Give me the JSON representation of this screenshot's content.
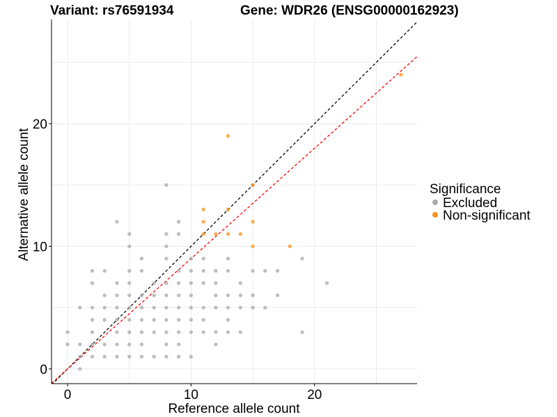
{
  "title_left": "Variant: rs76591934",
  "title_right": "Gene: WDR26 (ENSG00000162923)",
  "colors": {
    "excluded": "#aaaaaa",
    "non_significant": "#f7941d",
    "identity_line": "#000000",
    "fit_line": "#ff0000",
    "grid": "#ebebeb"
  },
  "chart_data": {
    "type": "scatter",
    "xlabel": "Reference allele count",
    "ylabel": "Alternative allele count",
    "xlim": [
      -1.3,
      28.3
    ],
    "ylim": [
      -1.2,
      28.5
    ],
    "x_ticks": [
      0,
      10,
      20
    ],
    "y_ticks": [
      0,
      10,
      20
    ],
    "grid": true,
    "legend": {
      "title": "Significance",
      "position": "right",
      "entries": [
        "Excluded",
        "Non-significant"
      ]
    },
    "reference_lines": [
      {
        "kind": "identity",
        "slope": 1,
        "intercept": 0,
        "style": "dashed",
        "color": "#000000"
      },
      {
        "kind": "fit",
        "slope": 0.9,
        "intercept": 0,
        "style": "dashed",
        "color": "#ff0000"
      }
    ],
    "series": [
      {
        "name": "Excluded",
        "color": "#aaaaaa",
        "points": [
          [
            0,
            3
          ],
          [
            0,
            2
          ],
          [
            1,
            5
          ],
          [
            1,
            2
          ],
          [
            1,
            1
          ],
          [
            1,
            0
          ],
          [
            2,
            8
          ],
          [
            2,
            7
          ],
          [
            2,
            5
          ],
          [
            2,
            4
          ],
          [
            2,
            3
          ],
          [
            2,
            2
          ],
          [
            2,
            1
          ],
          [
            3,
            8
          ],
          [
            3,
            6
          ],
          [
            3,
            5
          ],
          [
            3,
            4
          ],
          [
            3,
            2
          ],
          [
            3,
            1
          ],
          [
            4,
            12
          ],
          [
            4,
            7
          ],
          [
            4,
            6
          ],
          [
            4,
            5
          ],
          [
            4,
            4
          ],
          [
            4,
            3
          ],
          [
            4,
            2
          ],
          [
            4,
            1
          ],
          [
            5,
            11
          ],
          [
            5,
            10
          ],
          [
            5,
            8
          ],
          [
            5,
            7
          ],
          [
            5,
            6
          ],
          [
            5,
            5
          ],
          [
            5,
            4
          ],
          [
            5,
            3
          ],
          [
            5,
            2
          ],
          [
            5,
            1
          ],
          [
            6,
            9
          ],
          [
            6,
            8
          ],
          [
            6,
            6
          ],
          [
            6,
            5
          ],
          [
            6,
            4
          ],
          [
            6,
            3
          ],
          [
            6,
            2
          ],
          [
            6,
            1
          ],
          [
            7,
            7
          ],
          [
            7,
            6
          ],
          [
            7,
            5
          ],
          [
            7,
            4
          ],
          [
            7,
            3
          ],
          [
            7,
            1
          ],
          [
            8,
            15
          ],
          [
            8,
            11
          ],
          [
            8,
            10
          ],
          [
            8,
            9
          ],
          [
            8,
            7
          ],
          [
            8,
            6
          ],
          [
            8,
            5
          ],
          [
            8,
            4
          ],
          [
            8,
            3
          ],
          [
            8,
            2
          ],
          [
            8,
            1
          ],
          [
            9,
            12
          ],
          [
            9,
            11
          ],
          [
            9,
            8
          ],
          [
            9,
            7
          ],
          [
            9,
            6
          ],
          [
            9,
            5
          ],
          [
            9,
            4
          ],
          [
            9,
            3
          ],
          [
            9,
            2
          ],
          [
            9,
            1
          ],
          [
            10,
            9
          ],
          [
            10,
            8
          ],
          [
            10,
            7
          ],
          [
            10,
            6
          ],
          [
            10,
            5
          ],
          [
            10,
            4
          ],
          [
            10,
            3
          ],
          [
            10,
            1
          ],
          [
            11,
            9
          ],
          [
            11,
            8
          ],
          [
            11,
            7
          ],
          [
            11,
            5
          ],
          [
            11,
            4
          ],
          [
            11,
            3
          ],
          [
            12,
            8
          ],
          [
            12,
            7
          ],
          [
            12,
            6
          ],
          [
            12,
            5
          ],
          [
            12,
            3
          ],
          [
            12,
            2
          ],
          [
            13,
            9
          ],
          [
            13,
            8
          ],
          [
            13,
            6
          ],
          [
            13,
            5
          ],
          [
            13,
            4
          ],
          [
            13,
            3
          ],
          [
            14,
            7
          ],
          [
            14,
            6
          ],
          [
            14,
            5
          ],
          [
            14,
            3
          ],
          [
            15,
            15
          ],
          [
            15,
            8
          ],
          [
            15,
            6
          ],
          [
            15,
            5
          ],
          [
            16,
            8
          ],
          [
            16,
            5
          ],
          [
            17,
            8
          ],
          [
            17,
            6
          ],
          [
            19,
            9
          ],
          [
            19,
            3
          ],
          [
            21,
            7
          ]
        ]
      },
      {
        "name": "Non-significant",
        "color": "#f7941d",
        "points": [
          [
            27,
            24
          ],
          [
            13,
            19
          ],
          [
            15,
            15
          ],
          [
            11,
            13
          ],
          [
            11,
            12
          ],
          [
            11,
            11
          ],
          [
            12,
            11
          ],
          [
            13,
            11
          ],
          [
            14,
            11
          ],
          [
            15,
            12
          ],
          [
            13,
            13
          ],
          [
            15,
            10
          ],
          [
            18,
            10
          ]
        ]
      }
    ]
  }
}
